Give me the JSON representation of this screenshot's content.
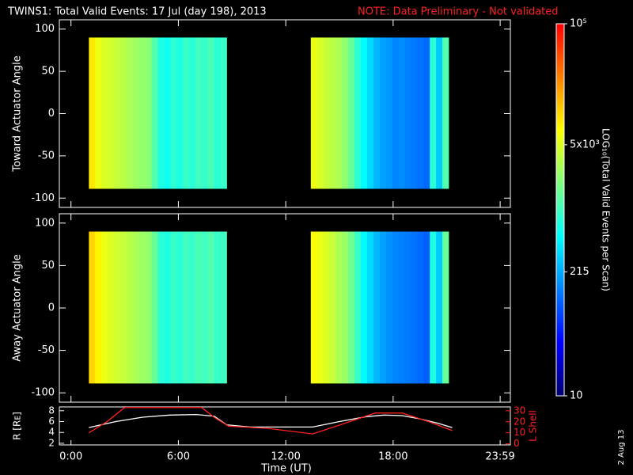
{
  "chart_data": {
    "type": "spectrogram",
    "title": "TWINS1: Total Valid Events: 17 Jul (day 198), 2013",
    "note": "NOTE: Data Preliminary - Not validated",
    "note_color": "#ff2020",
    "xlabel": "Time (UT)",
    "side_text": "2 Aug 13",
    "xlim": [
      -0.65,
      24.55
    ],
    "xticks": [
      {
        "value": 0,
        "label": "0:00"
      },
      {
        "value": 6,
        "label": "6:00"
      },
      {
        "value": 12,
        "label": "12:00"
      },
      {
        "value": 18,
        "label": "18:00"
      },
      {
        "value": 23.98,
        "label": "23:59"
      }
    ],
    "colorbar": {
      "label": "LOG₁₀(Total Valid Events per Scan)",
      "zlim": [
        10,
        100000
      ],
      "log": true,
      "colors": [
        "#000070",
        "#0000ff",
        "#0080ff",
        "#00ffff",
        "#80ff80",
        "#ffff00",
        "#ff8000",
        "#ff0000"
      ],
      "zticks": [
        {
          "value": 10,
          "label": "10"
        },
        {
          "value": 215,
          "label": "215"
        },
        {
          "value": 5000,
          "label": "5x10³"
        },
        {
          "value": 100000,
          "label": "10⁵"
        }
      ]
    },
    "panels": [
      {
        "ylabel": "Toward Actuator Angle",
        "ylim": [
          -111,
          111
        ],
        "yticks": [
          -100,
          -50,
          0,
          50,
          100
        ],
        "angle_bins": [
          -89,
          90
        ],
        "segments": [
          {
            "time_bins": [
              1.0,
              1.35,
              1.7,
              2.05,
              2.4,
              2.75,
              3.1,
              3.45,
              3.8,
              4.15,
              4.5,
              4.85,
              5.2,
              5.55,
              5.9,
              6.25,
              6.6,
              6.95,
              7.3,
              7.65,
              8.0,
              8.35,
              8.7
            ],
            "values": [
              9000,
              6000,
              5000,
              4500,
              4000,
              3500,
              3000,
              2600,
              2400,
              2200,
              1200,
              700,
              600,
              800,
              700,
              900,
              800,
              1000,
              900,
              1100,
              800,
              900
            ]
          },
          {
            "time_bins": [
              13.4,
              13.75,
              14.1,
              14.45,
              14.8,
              15.15,
              15.5,
              15.85,
              16.2,
              16.55,
              16.9,
              17.25,
              17.6,
              17.95,
              18.3,
              18.65,
              19.0,
              19.35,
              19.7,
              20.05,
              20.4,
              20.75,
              21.1
            ],
            "values": [
              6000,
              5000,
              4000,
              3500,
              3000,
              2200,
              1500,
              800,
              500,
              350,
              250,
              200,
              180,
              150,
              160,
              140,
              130,
              120,
              110,
              800,
              300,
              1200
            ]
          }
        ]
      },
      {
        "ylabel": "Away Actuator Angle",
        "ylim": [
          -111,
          111
        ],
        "yticks": [
          -100,
          -50,
          0,
          50,
          100
        ],
        "angle_bins": [
          -89,
          90
        ],
        "segments": [
          {
            "time_bins": [
              1.0,
              1.35,
              1.7,
              2.05,
              2.4,
              2.75,
              3.1,
              3.45,
              3.8,
              4.15,
              4.5,
              4.85,
              5.2,
              5.55,
              5.9,
              6.25,
              6.6,
              6.95,
              7.3,
              7.65,
              8.0,
              8.35,
              8.7
            ],
            "values": [
              11000,
              8000,
              6000,
              5000,
              4500,
              4000,
              3500,
              3000,
              2600,
              2400,
              1500,
              800,
              700,
              900,
              800,
              1000,
              900,
              1100,
              1000,
              1200,
              900,
              1000
            ]
          },
          {
            "time_bins": [
              13.4,
              13.75,
              14.1,
              14.45,
              14.8,
              15.15,
              15.5,
              15.85,
              16.2,
              16.55,
              16.9,
              17.25,
              17.6,
              17.95,
              18.3,
              18.65,
              19.0,
              19.35,
              19.7,
              20.05,
              20.4,
              20.75,
              21.1
            ],
            "values": [
              7000,
              6000,
              5000,
              4000,
              3000,
              2500,
              1600,
              900,
              500,
              350,
              250,
              200,
              170,
              150,
              140,
              130,
              120,
              110,
              100,
              700,
              300,
              1500
            ]
          }
        ]
      }
    ],
    "orbit": {
      "ylabel": "R [Rᴇ]",
      "ylim": [
        1.7,
        8.7
      ],
      "yticks": [
        2,
        4,
        6,
        8
      ],
      "y2label": "L Shell",
      "y2lim": [
        -1,
        33.5
      ],
      "y2ticks": [
        0,
        10,
        20,
        30
      ],
      "series": [
        {
          "name": "R",
          "color": "#ffffff",
          "x": [
            1.0,
            2.5,
            4.0,
            5.5,
            7.0,
            8.0,
            8.7,
            10.0,
            12.0,
            13.5,
            15.0,
            16.5,
            17.5,
            18.5,
            19.5,
            20.5,
            21.3
          ],
          "values": [
            4.9,
            6.0,
            6.8,
            7.2,
            7.3,
            7.0,
            5.4,
            5.0,
            5.0,
            5.0,
            6.0,
            6.9,
            7.2,
            7.1,
            6.5,
            5.7,
            4.9
          ]
        },
        {
          "name": "L Shell",
          "color": "#ff2020",
          "axis": "y2",
          "x": [
            1.0,
            2.0,
            3.0,
            7.3,
            8.0,
            8.8,
            11.0,
            13.5,
            15.0,
            17.0,
            18.5,
            20.0,
            21.3
          ],
          "values": [
            10,
            20,
            33,
            33,
            24,
            16,
            14,
            9,
            17,
            28,
            28,
            20,
            12
          ]
        }
      ]
    }
  }
}
